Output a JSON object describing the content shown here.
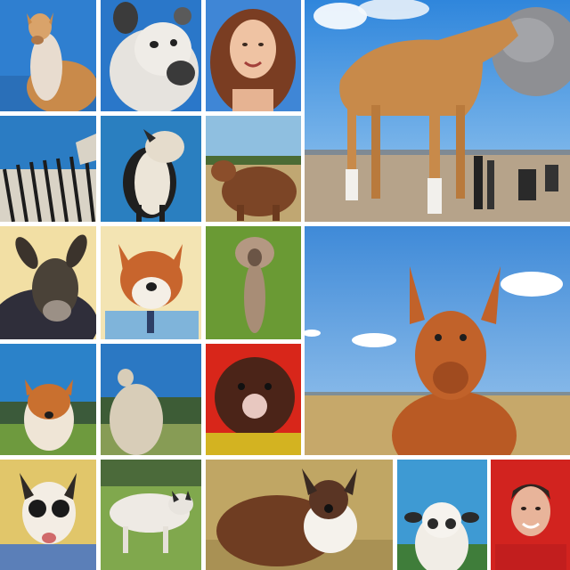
{
  "collage": {
    "tiles": [
      {
        "id": "camel-llama-hybrid",
        "sky": "#2f7fd0"
      },
      {
        "id": "white-goat-closeup",
        "sky": "#2a77c9"
      },
      {
        "id": "smiling-woman-portrait",
        "sky": "#3f86d6"
      },
      {
        "id": "orange-camel-with-boulder",
        "sky": "#3f95e6"
      },
      {
        "id": "zebra-patterned-llama",
        "sky": "#2b7cc3"
      },
      {
        "id": "penguin-goat-hybrid",
        "sky": "#2a7fc0"
      },
      {
        "id": "brown-furry-animal-field",
        "sky": "#8fbfe0"
      },
      {
        "id": "dark-donkey-portrait",
        "sky": "#f2dfa4"
      },
      {
        "id": "fox-in-blue-shirt",
        "sky": "#f3e4b3"
      },
      {
        "id": "poodle-on-grass",
        "sky": "#6a9a34"
      },
      {
        "id": "red-kangaroo-fox-on-plain",
        "sky": "#5c9ee0"
      },
      {
        "id": "fox-like-animal-on-hill",
        "sky": "#2b82c9"
      },
      {
        "id": "woolly-llama-back",
        "sky": "#2b78c3"
      },
      {
        "id": "dark-furry-creature-red-background",
        "sky": "#d8261a"
      },
      {
        "id": "lemur-face-in-jacket",
        "sky": "#e1c66a"
      },
      {
        "id": "white-pig-on-grass",
        "sky": "#80a84d"
      },
      {
        "id": "brown-deer-with-white-bib",
        "sky": "#c0a664"
      },
      {
        "id": "white-sheep-with-ears",
        "sky": "#3e9ad3"
      },
      {
        "id": "smiling-man-red-background",
        "sky": "#d2231f"
      }
    ]
  }
}
